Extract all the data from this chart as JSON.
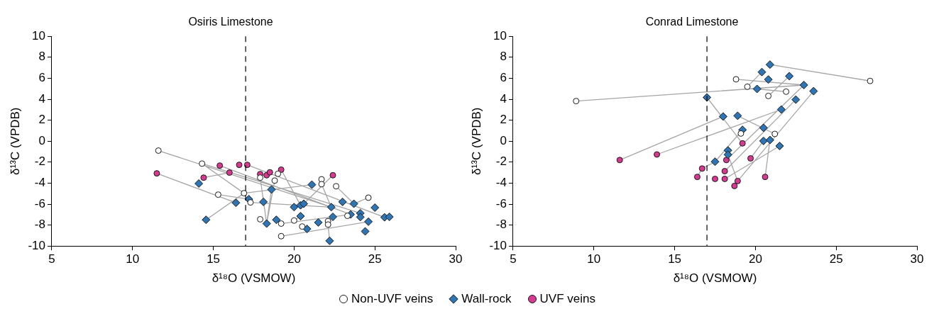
{
  "chart_data": [
    {
      "type": "scatter",
      "title": "Osiris Limestone",
      "xlabel": "δ¹⁸O (VSMOW)",
      "ylabel": "δ¹³C (VPDB)",
      "xlim": [
        5,
        30
      ],
      "xticks": [
        5,
        10,
        15,
        20,
        25,
        30
      ],
      "ylim": [
        -10,
        10
      ],
      "yticks": [
        -10,
        -8,
        -6,
        -4,
        -2,
        0,
        2,
        4,
        6,
        8,
        10
      ],
      "grid": false,
      "legend": "bottom",
      "ref_lines": [
        {
          "axis": "x",
          "value": 17,
          "color": "#000000",
          "line_style": "dashed"
        }
      ],
      "series": [
        {
          "type": "line",
          "color": "#a6a6a6",
          "marker": "none",
          "x": [
            11.6,
            22.3,
            null,
            11.5,
            16.4,
            null,
            14.3,
            16.9,
            null,
            14.3,
            24.1,
            null,
            14.4,
            16.0,
            null,
            14.55,
            16.9,
            null,
            15.3,
            17.2,
            null,
            15.4,
            23.5,
            null,
            17.1,
            25.6,
            null,
            17.9,
            18.3,
            null,
            18.8,
            18.3,
            null,
            19.2,
            20.4,
            null,
            22.4,
            20.6,
            null,
            21.7,
            22.3,
            null,
            22.6,
            23.7,
            null,
            24.6,
            23.7,
            null,
            16.9,
            21.1,
            null,
            17.3,
            22.3,
            null,
            19.2,
            24.6,
            null,
            22.2,
            22.1,
            null,
            19.2,
            23.5,
            null,
            18.6,
            18.3,
            null,
            20.0,
            20.4
          ],
          "values": [
            -0.9,
            -6.29,
            null,
            -3.07,
            -5.88,
            null,
            -2.14,
            -4.96,
            null,
            -2.14,
            -6.87,
            null,
            -3.48,
            -3.0,
            null,
            -7.5,
            -4.96,
            null,
            -5.1,
            -5.53,
            null,
            -2.33,
            -6.99,
            null,
            -2.26,
            -7.26,
            null,
            -3.48,
            -7.86,
            null,
            -3.76,
            -7.86,
            null,
            -2.72,
            -6.11,
            null,
            -3.25,
            -5.97,
            null,
            -4.1,
            -6.29,
            null,
            -4.3,
            -5.97,
            null,
            -5.39,
            -5.97,
            null,
            -4.96,
            -4.15,
            null,
            -5.84,
            -6.29,
            null,
            -9.06,
            -7.68,
            null,
            -9.5,
            -7.95,
            null,
            -7.86,
            -6.99,
            null,
            -4.61,
            -7.86,
            null,
            -7.57,
            -7.15
          ]
        },
        {
          "type": "scatter",
          "name": "Non-UVF veins",
          "color": "#ffffff",
          "marker": "circle",
          "x": [
            11.6,
            14.3,
            15.3,
            16.9,
            17.9,
            19.0,
            18.8,
            21.7,
            21.7,
            22.6,
            17.3,
            24.6,
            23.3,
            17.9,
            19.2,
            20.0,
            20.5,
            22.1,
            22.1,
            19.2
          ],
          "values": [
            -0.9,
            -2.14,
            -5.1,
            -4.96,
            -3.48,
            -3.11,
            -3.76,
            -3.64,
            -4.1,
            -4.3,
            -5.84,
            -5.39,
            -7.12,
            -7.45,
            -7.86,
            -7.57,
            -8.14,
            -7.63,
            -7.95,
            -9.06
          ]
        },
        {
          "type": "scatter",
          "name": "Wall-rock",
          "color": "#2e75b6",
          "marker": "diamond",
          "x": [
            14.1,
            16.4,
            14.55,
            21.1,
            18.6,
            17.2,
            18.1,
            20.0,
            20.4,
            20.6,
            22.3,
            23.0,
            23.7,
            25.0,
            20.4,
            22.4,
            23.5,
            24.1,
            24.1,
            25.6,
            25.9,
            18.3,
            18.9,
            20.8,
            21.5,
            24.6,
            24.4,
            22.2
          ],
          "values": [
            -4.04,
            -5.88,
            -7.5,
            -4.15,
            -4.61,
            -5.53,
            -5.79,
            -6.29,
            -6.11,
            -5.97,
            -6.29,
            -5.79,
            -5.97,
            -6.34,
            -7.15,
            -7.22,
            -6.99,
            -6.87,
            -7.24,
            -7.26,
            -7.22,
            -7.86,
            -7.5,
            -8.37,
            -7.75,
            -7.68,
            -8.6,
            -9.5
          ]
        },
        {
          "type": "scatter",
          "name": "UVF veins",
          "color": "#d6398f",
          "marker": "circle",
          "x": [
            15.4,
            16.6,
            17.1,
            11.5,
            16.0,
            14.4,
            17.9,
            18.3,
            18.5,
            19.2,
            22.4
          ],
          "values": [
            -2.33,
            -2.26,
            -2.26,
            -3.07,
            -3.0,
            -3.48,
            -3.14,
            -3.25,
            -2.97,
            -2.72,
            -3.25
          ]
        }
      ]
    },
    {
      "type": "scatter",
      "title": "Conrad Limestone",
      "xlabel": "δ¹⁸O (VSMOW)",
      "ylabel": "δ¹³C (VPDB)",
      "xlim": [
        5,
        30
      ],
      "xticks": [
        5,
        10,
        15,
        20,
        25,
        30
      ],
      "ylim": [
        -10,
        10
      ],
      "yticks": [
        -10,
        -8,
        -6,
        -4,
        -2,
        0,
        2,
        4,
        6,
        8,
        10
      ],
      "grid": false,
      "legend": "bottom",
      "ref_lines": [
        {
          "axis": "x",
          "value": 17,
          "color": "#000000",
          "line_style": "dashed"
        }
      ],
      "series": [
        {
          "type": "line",
          "color": "#a6a6a6",
          "marker": "none",
          "x": [
            8.9,
            23.0,
            null,
            20.9,
            27.1,
            null,
            20.4,
            19.5,
            null,
            18.8,
            23.0,
            null,
            20.1,
            21.9,
            null,
            22.1,
            20.8,
            null,
            17.0,
            19.2,
            null,
            11.6,
            18.0,
            null,
            13.9,
            21.6,
            null,
            16.4,
            16.7,
            17.5,
            null,
            18.9,
            21.2,
            null,
            18.2,
            23.0,
            null,
            18.1,
            22.5,
            null,
            18.9,
            23.6,
            null,
            18.1,
            21.5,
            null,
            18.3,
            18.9,
            null,
            19.7,
            20.5,
            null,
            20.6,
            20.9,
            null,
            19.2,
            17.5
          ],
          "values": [
            3.82,
            5.35,
            null,
            7.3,
            5.74,
            null,
            6.59,
            5.19,
            null,
            5.9,
            5.35,
            null,
            4.98,
            4.72,
            null,
            6.2,
            4.31,
            null,
            4.17,
            -0.21,
            null,
            -1.8,
            2.35,
            null,
            -1.27,
            3.02,
            null,
            -3.41,
            -2.61,
            -1.96,
            null,
            2.42,
            0.69,
            null,
            -1.8,
            5.35,
            null,
            -2.86,
            3.96,
            null,
            -3.8,
            4.77,
            null,
            -3.6,
            -0.46,
            null,
            -1.29,
            -3.8,
            null,
            -1.64,
            0.02,
            null,
            -3.41,
            0.11,
            null,
            1.08,
            -1.96
          ]
        },
        {
          "type": "scatter",
          "name": "Non-UVF veins",
          "color": "#ffffff",
          "marker": "circle",
          "x": [
            8.9,
            18.8,
            27.1,
            19.5,
            21.9,
            20.8,
            19.1,
            21.2
          ],
          "values": [
            3.82,
            5.9,
            5.74,
            5.19,
            4.72,
            4.31,
            0.73,
            0.69
          ]
        },
        {
          "type": "scatter",
          "name": "Wall-rock",
          "color": "#2e75b6",
          "marker": "diamond",
          "x": [
            17.0,
            20.9,
            20.4,
            22.1,
            20.8,
            20.1,
            23.0,
            23.6,
            22.5,
            21.6,
            18.0,
            18.9,
            19.2,
            20.5,
            20.5,
            20.9,
            21.5,
            18.3,
            18.3,
            17.5
          ],
          "values": [
            4.17,
            7.3,
            6.59,
            6.2,
            5.88,
            4.98,
            5.35,
            4.77,
            3.96,
            3.02,
            2.35,
            2.42,
            1.08,
            1.27,
            0.02,
            0.11,
            -0.46,
            -0.88,
            -1.29,
            -1.96
          ]
        },
        {
          "type": "scatter",
          "name": "UVF veins",
          "color": "#d6398f",
          "marker": "circle",
          "x": [
            11.6,
            13.9,
            16.7,
            16.4,
            19.2,
            18.2,
            19.7,
            18.1,
            17.5,
            18.1,
            18.9,
            18.7,
            20.6
          ],
          "values": [
            -1.8,
            -1.27,
            -2.61,
            -3.41,
            -0.21,
            -1.8,
            -1.64,
            -2.86,
            -3.6,
            -3.6,
            -3.8,
            -4.27,
            -3.41
          ]
        }
      ]
    }
  ]
}
